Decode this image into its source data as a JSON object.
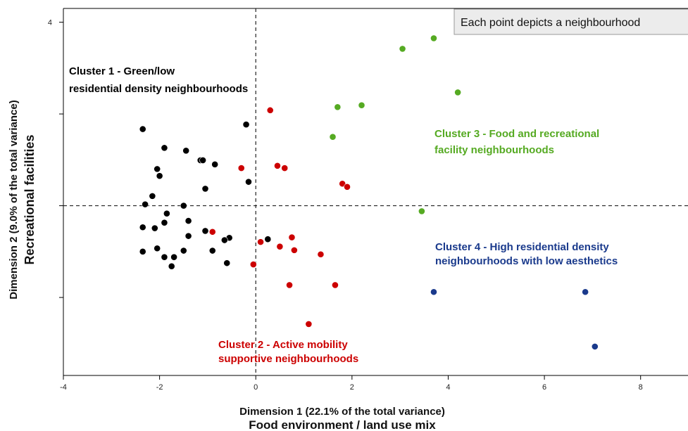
{
  "chart_data": {
    "type": "scatter",
    "xlim": [
      -4,
      9
    ],
    "ylim": [
      -3.7,
      4.3
    ],
    "x_ticks": [
      -4,
      -2,
      0,
      2,
      4,
      6,
      8
    ],
    "y_ticks": [
      -2,
      0,
      2,
      4
    ],
    "y_tick_labels_shown": [
      "4"
    ],
    "reference_lines": {
      "x": 0,
      "y": 0,
      "style": "dashed"
    },
    "xlabel": "Dimension 1 (22.1% of the total variance)",
    "xlabel2": "Food environment / land use mix",
    "ylabel": "Dimension 2 (9.0% of the total variance)",
    "ylabel2": "Recreational facilities",
    "note": "Each point depicts a neighbourhood",
    "grid": false,
    "series": [
      {
        "name": "Cluster 1 - Green/low residential density neighbourhoods",
        "label_lines": [
          "Cluster 1 - Green/low",
          "residential density neighbourhoods"
        ],
        "color": "#000000",
        "points": [
          [
            -2.35,
            1.67
          ],
          [
            -1.9,
            1.26
          ],
          [
            -1.45,
            1.2
          ],
          [
            -1.15,
            0.99
          ],
          [
            -1.1,
            0.99
          ],
          [
            -0.85,
            0.9
          ],
          [
            -2.05,
            0.8
          ],
          [
            -2.0,
            0.65
          ],
          [
            -1.05,
            0.37
          ],
          [
            -2.15,
            0.21
          ],
          [
            -2.3,
            0.03
          ],
          [
            -1.5,
            0.0
          ],
          [
            -1.85,
            -0.17
          ],
          [
            -1.4,
            -0.33
          ],
          [
            -1.9,
            -0.37
          ],
          [
            -2.35,
            -0.47
          ],
          [
            -2.1,
            -0.49
          ],
          [
            -1.05,
            -0.55
          ],
          [
            -1.4,
            -0.66
          ],
          [
            -0.55,
            -0.7
          ],
          [
            -0.65,
            -0.75
          ],
          [
            -2.05,
            -0.93
          ],
          [
            -1.5,
            -0.98
          ],
          [
            -0.9,
            -0.98
          ],
          [
            -2.35,
            -1.0
          ],
          [
            -1.9,
            -1.12
          ],
          [
            -1.7,
            -1.12
          ],
          [
            -0.6,
            -1.25
          ],
          [
            -1.75,
            -1.32
          ],
          [
            -0.2,
            1.77
          ],
          [
            -0.15,
            0.52
          ],
          [
            0.25,
            -0.73
          ]
        ]
      },
      {
        "name": "Cluster 2 - Active mobility supportive neighbourhoods",
        "label_lines": [
          "Cluster 2 - Active mobility",
          "supportive neighbourhoods"
        ],
        "color": "#cc0000",
        "points": [
          [
            0.3,
            2.08
          ],
          [
            -0.3,
            0.82
          ],
          [
            0.45,
            0.87
          ],
          [
            0.6,
            0.82
          ],
          [
            1.8,
            0.48
          ],
          [
            1.9,
            0.41
          ],
          [
            -0.9,
            -0.57
          ],
          [
            0.1,
            -0.79
          ],
          [
            0.75,
            -0.69
          ],
          [
            0.5,
            -0.89
          ],
          [
            0.8,
            -0.97
          ],
          [
            1.35,
            -1.06
          ],
          [
            -0.05,
            -1.28
          ],
          [
            0.7,
            -1.73
          ],
          [
            1.65,
            -1.73
          ],
          [
            1.1,
            -2.58
          ]
        ]
      },
      {
        "name": "Cluster 3 - Food and recreational facility neighbourhoods",
        "label_lines": [
          "Cluster 3 - Food and recreational",
          "facility neighbourhoods"
        ],
        "color": "#55aa22",
        "points": [
          [
            3.7,
            3.65
          ],
          [
            3.05,
            3.42
          ],
          [
            4.2,
            2.47
          ],
          [
            2.2,
            2.19
          ],
          [
            1.7,
            2.15
          ],
          [
            1.6,
            1.5
          ],
          [
            3.45,
            -0.12
          ]
        ]
      },
      {
        "name": "Cluster 4 - High residential density neighbourhoods with low aesthetics",
        "label_lines": [
          "Cluster 4 - High residential density",
          "neighbourhoods with low aesthetics"
        ],
        "color": "#1a3a8c",
        "points": [
          [
            3.7,
            -1.88
          ],
          [
            6.85,
            -1.88
          ],
          [
            7.05,
            -3.07
          ]
        ]
      }
    ]
  }
}
